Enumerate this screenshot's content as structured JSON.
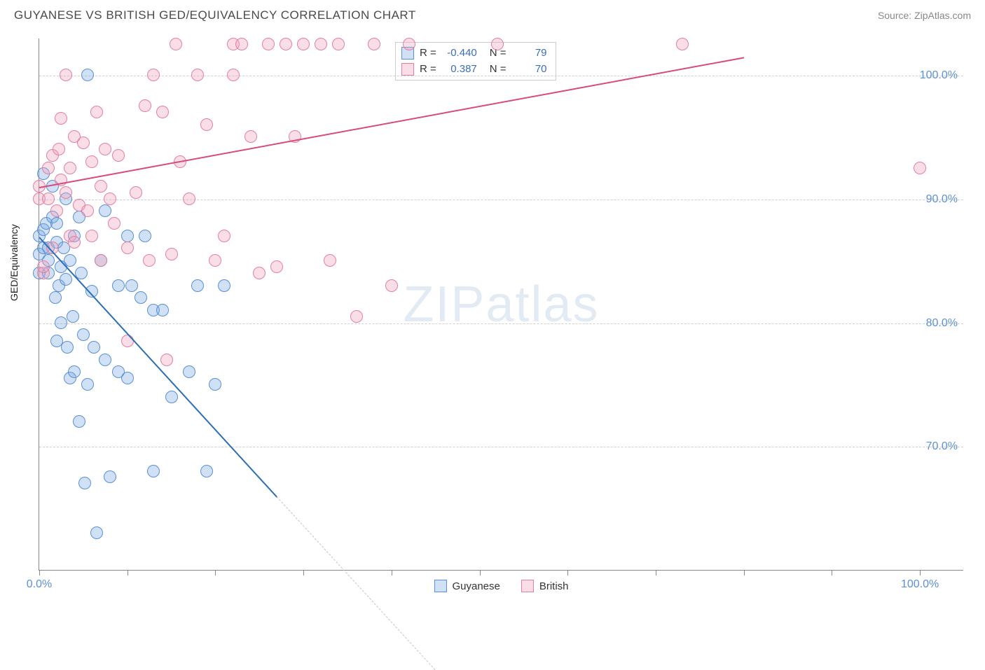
{
  "title": "GUYANESE VS BRITISH GED/EQUIVALENCY CORRELATION CHART",
  "source_label": "Source: ",
  "source_name": "ZipAtlas.com",
  "ylabel": "GED/Equivalency",
  "watermark_a": "ZIP",
  "watermark_b": "atlas",
  "chart": {
    "type": "scatter",
    "xlim": [
      0,
      105
    ],
    "ylim": [
      60,
      103
    ],
    "yticks": [
      70,
      80,
      90,
      100
    ],
    "ytick_labels": [
      "70.0%",
      "80.0%",
      "90.0%",
      "100.0%"
    ],
    "xticks": [
      0,
      10,
      20,
      30,
      40,
      50,
      60,
      70,
      80,
      90,
      100
    ],
    "xtick_labels_shown": {
      "0": "0.0%",
      "100": "100.0%"
    },
    "background_color": "#ffffff",
    "grid_color": "#d0d0d0",
    "axis_color": "#888888",
    "marker_radius": 9,
    "marker_stroke_width": 1.5,
    "series": {
      "guyanese": {
        "label": "Guyanese",
        "fill": "rgba(120,170,225,0.35)",
        "stroke": "#5b8fd6",
        "r_value": "-0.440",
        "n_value": "79",
        "trend": {
          "x1": 0,
          "y1": 87,
          "x2": 27,
          "y2": 66,
          "color": "#2d6fb5",
          "width": 2.5,
          "dash_x2": 45,
          "dash_y2": 52,
          "dash_color": "#c5c5c5"
        },
        "points": [
          [
            0,
            87
          ],
          [
            0,
            85.5
          ],
          [
            0,
            84
          ],
          [
            0.5,
            87.5
          ],
          [
            0.5,
            86
          ],
          [
            0.5,
            92
          ],
          [
            0.8,
            88
          ],
          [
            1,
            86
          ],
          [
            1,
            84
          ],
          [
            1,
            85
          ],
          [
            1.5,
            91
          ],
          [
            1.5,
            88.5
          ],
          [
            1.8,
            82
          ],
          [
            2,
            86.5
          ],
          [
            2,
            88
          ],
          [
            2,
            78.5
          ],
          [
            2.2,
            83
          ],
          [
            2.5,
            84.5
          ],
          [
            2.5,
            80
          ],
          [
            2.8,
            86
          ],
          [
            3,
            90
          ],
          [
            3,
            83.5
          ],
          [
            3.2,
            78
          ],
          [
            3.5,
            85
          ],
          [
            3.5,
            75.5
          ],
          [
            3.8,
            80.5
          ],
          [
            4,
            87
          ],
          [
            4,
            76
          ],
          [
            4.5,
            88.5
          ],
          [
            4.5,
            72
          ],
          [
            4.8,
            84
          ],
          [
            5,
            79
          ],
          [
            5.2,
            67
          ],
          [
            5.5,
            100
          ],
          [
            5.5,
            75
          ],
          [
            6,
            82.5
          ],
          [
            6.2,
            78
          ],
          [
            6.5,
            63
          ],
          [
            7,
            85
          ],
          [
            7.5,
            89
          ],
          [
            7.5,
            77
          ],
          [
            8,
            67.5
          ],
          [
            9,
            83
          ],
          [
            9,
            76
          ],
          [
            10,
            87
          ],
          [
            10,
            75.5
          ],
          [
            10.5,
            83
          ],
          [
            11.5,
            82
          ],
          [
            12,
            87
          ],
          [
            13,
            81
          ],
          [
            13,
            68
          ],
          [
            14,
            81
          ],
          [
            15,
            74
          ],
          [
            17,
            76
          ],
          [
            18,
            83
          ],
          [
            19,
            68
          ],
          [
            20,
            75
          ],
          [
            21,
            83
          ]
        ]
      },
      "british": {
        "label": "British",
        "fill": "rgba(240,160,185,0.35)",
        "stroke": "#e47fa0",
        "r_value": "0.387",
        "n_value": "70",
        "trend": {
          "x1": 0,
          "y1": 91,
          "x2": 80,
          "y2": 101.5,
          "color": "#d84a7a",
          "width": 2.5
        },
        "points": [
          [
            0,
            91
          ],
          [
            0,
            90
          ],
          [
            0.5,
            84
          ],
          [
            0.5,
            84.5
          ],
          [
            1,
            92.5
          ],
          [
            1,
            90
          ],
          [
            1.5,
            86
          ],
          [
            1.5,
            93.5
          ],
          [
            2,
            89
          ],
          [
            2.2,
            94
          ],
          [
            2.5,
            91.5
          ],
          [
            2.5,
            96.5
          ],
          [
            3,
            100
          ],
          [
            3,
            90.5
          ],
          [
            3.5,
            92.5
          ],
          [
            3.5,
            87
          ],
          [
            4,
            95
          ],
          [
            4,
            86.5
          ],
          [
            4.5,
            89.5
          ],
          [
            5,
            94.5
          ],
          [
            5.5,
            89
          ],
          [
            6,
            93
          ],
          [
            6,
            87
          ],
          [
            6.5,
            97
          ],
          [
            7,
            91
          ],
          [
            7,
            85
          ],
          [
            7.5,
            94
          ],
          [
            8,
            90
          ],
          [
            8.5,
            88
          ],
          [
            9,
            93.5
          ],
          [
            10,
            78.5
          ],
          [
            10,
            86
          ],
          [
            11,
            90.5
          ],
          [
            12,
            97.5
          ],
          [
            12.5,
            85
          ],
          [
            13,
            100
          ],
          [
            14,
            97
          ],
          [
            14.5,
            77
          ],
          [
            15,
            85.5
          ],
          [
            15.5,
            102.5
          ],
          [
            16,
            93
          ],
          [
            17,
            90
          ],
          [
            18,
            100
          ],
          [
            19,
            96
          ],
          [
            20,
            85
          ],
          [
            21,
            87
          ],
          [
            22,
            100
          ],
          [
            22,
            102.5
          ],
          [
            23,
            102.5
          ],
          [
            24,
            95
          ],
          [
            25,
            84
          ],
          [
            26,
            102.5
          ],
          [
            27,
            84.5
          ],
          [
            28,
            102.5
          ],
          [
            29,
            95
          ],
          [
            30,
            102.5
          ],
          [
            32,
            102.5
          ],
          [
            33,
            85
          ],
          [
            34,
            102.5
          ],
          [
            36,
            80.5
          ],
          [
            38,
            102.5
          ],
          [
            40,
            83
          ],
          [
            42,
            102.5
          ],
          [
            52,
            102.5
          ],
          [
            73,
            102.5
          ],
          [
            100,
            92.5
          ]
        ]
      }
    }
  },
  "legend_r_label": "R =",
  "legend_n_label": "N ="
}
